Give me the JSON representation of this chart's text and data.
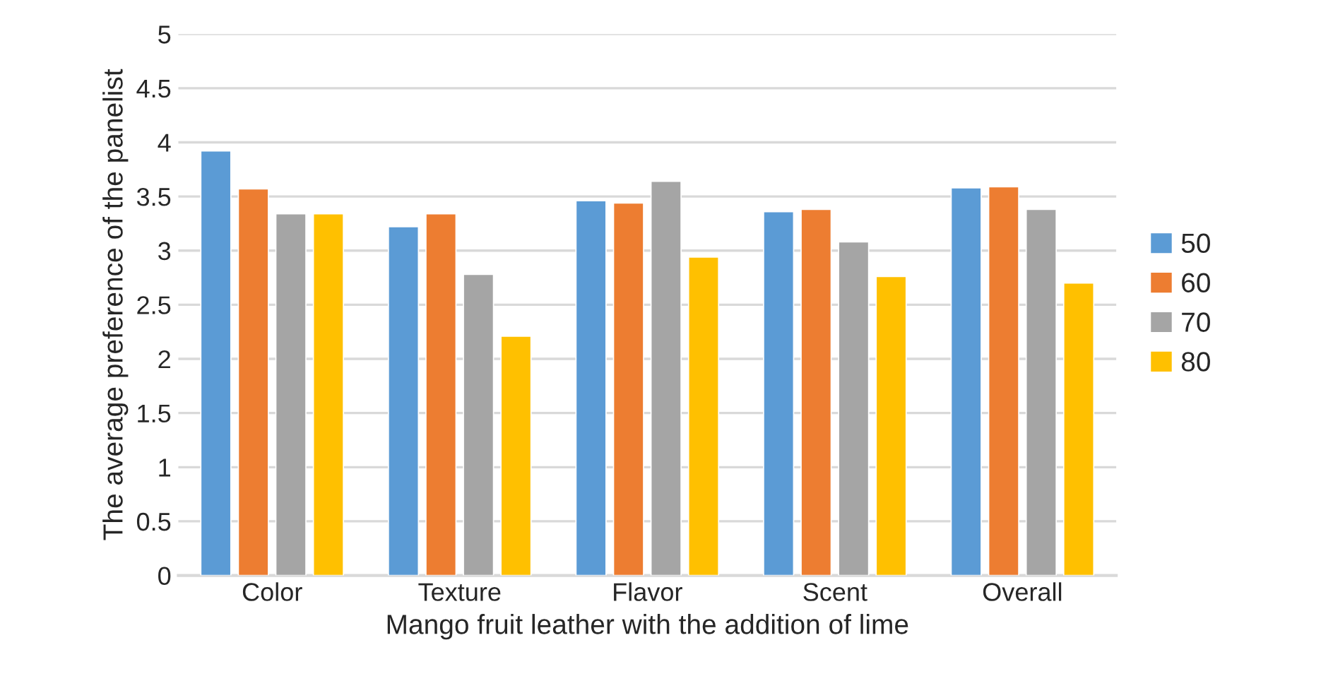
{
  "chart_data": {
    "type": "bar",
    "xlabel": "Mango fruit leather with the addition of lime",
    "ylabel": "The average preference of the panelist",
    "categories": [
      "Color",
      "Texture",
      "Flavor",
      "Scent",
      "Overall"
    ],
    "series": [
      {
        "name": "50",
        "color": "#5b9bd5",
        "values": [
          3.92,
          3.22,
          3.46,
          3.36,
          3.58
        ]
      },
      {
        "name": "60",
        "color": "#ed7d31",
        "values": [
          3.57,
          3.34,
          3.44,
          3.38,
          3.59
        ]
      },
      {
        "name": "70",
        "color": "#a5a5a5",
        "values": [
          3.34,
          2.78,
          3.64,
          3.08,
          3.38
        ]
      },
      {
        "name": "80",
        "color": "#ffc000",
        "values": [
          3.34,
          2.21,
          2.94,
          2.76,
          2.7
        ]
      }
    ],
    "ylim": [
      0,
      5
    ],
    "yticks": [
      0,
      0.5,
      1,
      1.5,
      2,
      2.5,
      3,
      3.5,
      4,
      4.5,
      5
    ],
    "grid": "y",
    "legend": "right"
  }
}
